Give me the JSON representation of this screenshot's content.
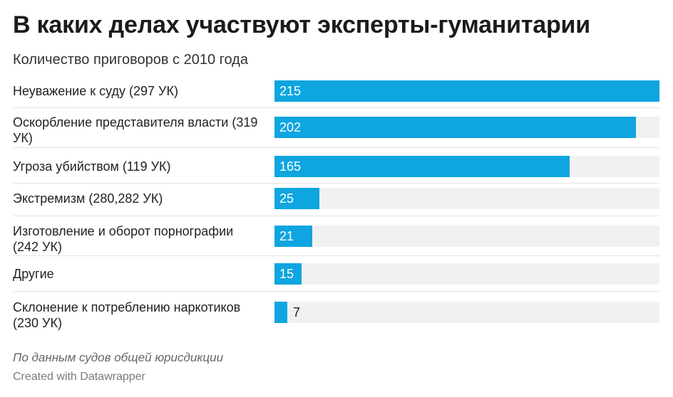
{
  "header": {
    "title": "В каких делах участвуют эксперты-гуманитарии",
    "subtitle": "Количество приговоров с 2010 года"
  },
  "footer": {
    "source": "По данным судов общей юрисдикции",
    "credit": "Created with Datawrapper"
  },
  "colors": {
    "bar": "#0ea5e0",
    "track": "#f1f1f1"
  },
  "chart_data": {
    "type": "bar",
    "orientation": "horizontal",
    "categories": [
      "Неуважение к суду (297 УК)",
      "Оскорбление представителя власти (319 УК)",
      "Угроза убийством (119 УК)",
      "Экстремизм (280,282 УК)",
      "Изготовление и оборот порнографии (242 УК)",
      "Другие",
      "Склонение к потреблению наркотиков (230 УК)"
    ],
    "values": [
      215,
      202,
      165,
      25,
      21,
      15,
      7
    ],
    "xlim": [
      0,
      215
    ],
    "grid": false,
    "data_labels": true
  }
}
